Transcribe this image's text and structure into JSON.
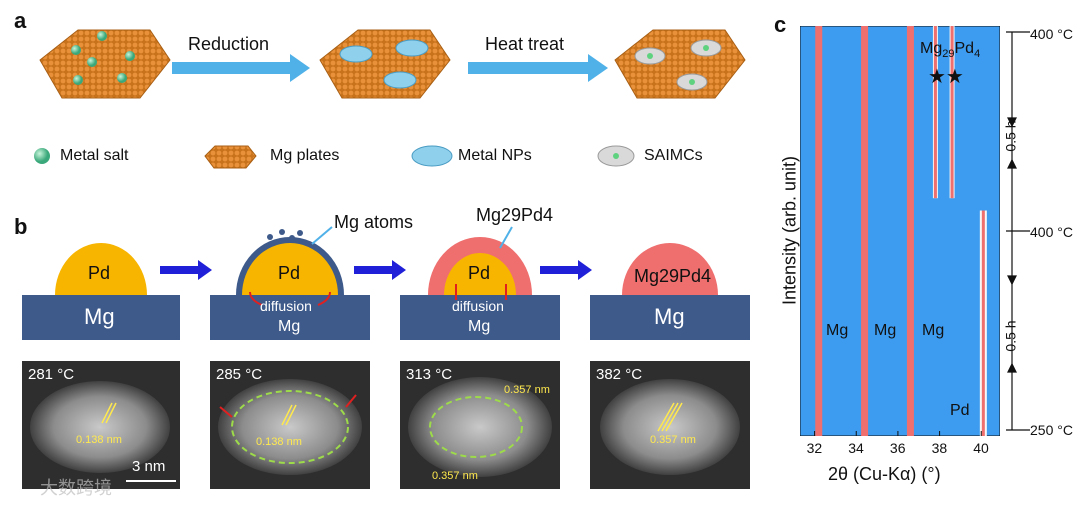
{
  "panel_a": {
    "label": "a",
    "arrow1_label": "Reduction",
    "arrow2_label": "Heat treat",
    "legend": [
      "Metal salt",
      "Mg plates",
      "Metal NPs",
      "SAIMCs"
    ]
  },
  "panel_b": {
    "label": "b",
    "stages": [
      {
        "particle": "Pd",
        "substrate": "Mg"
      },
      {
        "particle": "Pd",
        "substrate": "Mg",
        "diffusion": "diffusion",
        "annotation": "Mg atoms"
      },
      {
        "particle": "Pd",
        "substrate": "Mg",
        "diffusion": "diffusion",
        "annotation": "Mg29Pd4"
      },
      {
        "particle": "Mg29Pd4",
        "substrate": "Mg"
      }
    ],
    "images": [
      {
        "temp": "281 °C",
        "spacing": "0.138 nm",
        "scalebar": "3 nm"
      },
      {
        "temp": "285 °C",
        "spacing": "0.138 nm"
      },
      {
        "temp": "313 °C",
        "spacing_top": "0.357 nm",
        "spacing_bottom": "0.357 nm"
      },
      {
        "temp": "382 °C",
        "spacing": "0.357 nm"
      }
    ]
  },
  "panel_c": {
    "label": "c",
    "ylabel": "Intensity (arb. unit)",
    "xlabel": "2θ (Cu-Kα) (°)",
    "phase_top": "Mg29Pd4",
    "phase_pd": "Pd",
    "mg_labels": [
      "Mg",
      "Mg",
      "Mg"
    ],
    "right_labels": [
      "400 °C",
      "400 °C",
      "250 °C"
    ],
    "time_labels": [
      "0.5 h",
      "0.5 h"
    ]
  },
  "watermark": "大数跨境",
  "chart_data": {
    "type": "heatmap",
    "xlabel": "2θ (Cu-Kα) (°)",
    "ylabel": "Intensity (arb. unit)",
    "xlim": [
      31.3,
      40.9
    ],
    "xticks": [
      32,
      34,
      36,
      38,
      40
    ],
    "peaks": [
      {
        "name": "Mg",
        "x": 32.2
      },
      {
        "name": "Mg",
        "x": 34.4
      },
      {
        "name": "Mg",
        "x": 36.6
      },
      {
        "name": "Mg29Pd4",
        "x": 37.8
      },
      {
        "name": "Mg29Pd4",
        "x": 38.6
      },
      {
        "name": "Pd",
        "x": 40.1
      }
    ],
    "temperature_program": [
      "250 °C",
      "400 °C",
      "400 °C"
    ]
  }
}
